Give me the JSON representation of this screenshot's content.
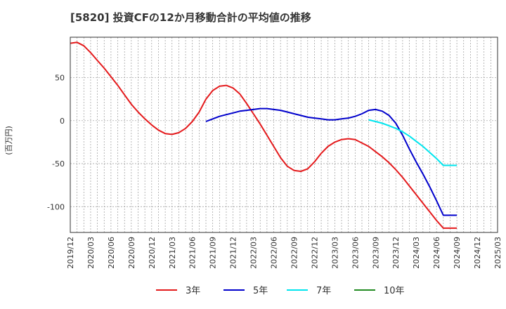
{
  "chart_data": {
    "type": "line",
    "title": "[5820]  投資CFの12か月移動合計の平均値の推移",
    "ylabel": "(百万円)",
    "xlabel": "",
    "ylim": [
      -130,
      97
    ],
    "yticks": [
      50,
      0,
      -50,
      -100
    ],
    "xtick_labels": [
      "2019/12",
      "2020/03",
      "2020/06",
      "2020/09",
      "2020/12",
      "2021/03",
      "2021/06",
      "2021/09",
      "2021/12",
      "2022/03",
      "2022/06",
      "2022/09",
      "2022/12",
      "2023/03",
      "2023/06",
      "2023/09",
      "2023/12",
      "2024/03",
      "2024/06",
      "2024/09",
      "2024/12",
      "2025/03"
    ],
    "grid": true,
    "legend_position": "bottom",
    "series": [
      {
        "name": "3年",
        "color": "#e41a1c",
        "x": [
          "2019/12",
          "2020/01",
          "2020/02",
          "2020/03",
          "2020/04",
          "2020/05",
          "2020/06",
          "2020/07",
          "2020/08",
          "2020/09",
          "2020/10",
          "2020/11",
          "2020/12",
          "2021/01",
          "2021/02",
          "2021/03",
          "2021/04",
          "2021/05",
          "2021/06",
          "2021/07",
          "2021/08",
          "2021/09",
          "2021/10",
          "2021/11",
          "2021/12",
          "2022/01",
          "2022/02",
          "2022/03",
          "2022/04",
          "2022/05",
          "2022/06",
          "2022/07",
          "2022/08",
          "2022/09",
          "2022/10",
          "2022/11",
          "2022/12",
          "2023/01",
          "2023/02",
          "2023/03",
          "2023/04",
          "2023/05",
          "2023/06",
          "2023/07",
          "2023/08",
          "2023/09",
          "2023/10",
          "2023/11",
          "2023/12",
          "2024/01",
          "2024/02",
          "2024/03",
          "2024/04",
          "2024/05",
          "2024/06",
          "2024/07",
          "2024/08",
          "2024/09"
        ],
        "values": [
          90,
          91,
          87,
          79,
          70,
          61,
          51,
          41,
          30,
          19,
          10,
          2,
          -5,
          -11,
          -15,
          -16,
          -14,
          -9,
          -1,
          10,
          25,
          35,
          40,
          41,
          38,
          31,
          20,
          8,
          -4,
          -17,
          -30,
          -43,
          -53,
          -58,
          -59,
          -56,
          -48,
          -38,
          -30,
          -25,
          -22,
          -21,
          -22,
          -26,
          -30,
          -36,
          -42,
          -49,
          -57,
          -66,
          -76,
          -86,
          -96,
          -106,
          -116,
          -125,
          -125,
          -125
        ]
      },
      {
        "name": "5年",
        "color": "#0000cc",
        "x": [
          "2021/08",
          "2021/09",
          "2021/10",
          "2021/11",
          "2021/12",
          "2022/01",
          "2022/02",
          "2022/03",
          "2022/04",
          "2022/05",
          "2022/06",
          "2022/07",
          "2022/08",
          "2022/09",
          "2022/10",
          "2022/11",
          "2022/12",
          "2023/01",
          "2023/02",
          "2023/03",
          "2023/04",
          "2023/05",
          "2023/06",
          "2023/07",
          "2023/08",
          "2023/09",
          "2023/10",
          "2023/11",
          "2023/12",
          "2024/01",
          "2024/02",
          "2024/03",
          "2024/04",
          "2024/05",
          "2024/06",
          "2024/07",
          "2024/08",
          "2024/09"
        ],
        "values": [
          -1,
          2,
          5,
          7,
          9,
          11,
          12,
          13,
          14,
          14,
          13,
          12,
          10,
          8,
          6,
          4,
          3,
          2,
          1,
          1,
          2,
          3,
          5,
          8,
          12,
          13,
          11,
          6,
          -3,
          -17,
          -33,
          -48,
          -62,
          -77,
          -93,
          -110,
          -110,
          -110
        ]
      },
      {
        "name": "7年",
        "color": "#00e5ee",
        "x": [
          "2023/08",
          "2023/09",
          "2023/10",
          "2023/11",
          "2023/12",
          "2024/01",
          "2024/02",
          "2024/03",
          "2024/04",
          "2024/05",
          "2024/06",
          "2024/07",
          "2024/08",
          "2024/09"
        ],
        "values": [
          1,
          -1,
          -3,
          -6,
          -9,
          -13,
          -18,
          -24,
          -30,
          -37,
          -44,
          -52,
          -52,
          -52
        ]
      },
      {
        "name": "10年",
        "color": "#228b22",
        "x": [],
        "values": []
      }
    ]
  }
}
